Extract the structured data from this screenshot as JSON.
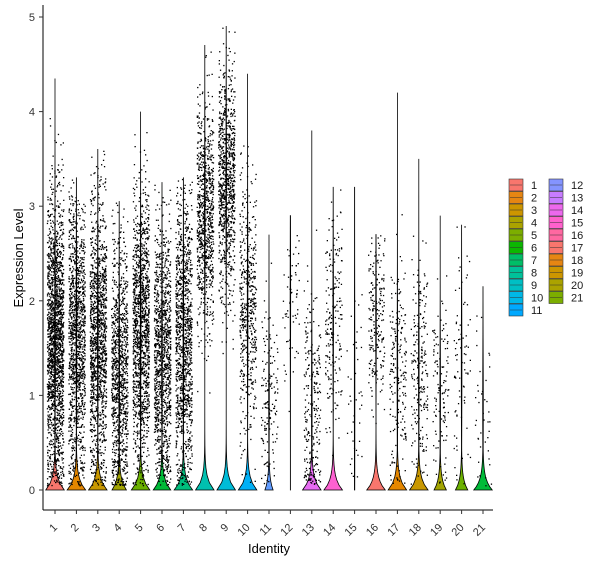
{
  "chart_data": {
    "type": "violin",
    "xlabel": "Identity",
    "ylabel": "Expression Level",
    "ylim": [
      -0.2,
      5.1
    ],
    "yticks": [
      0,
      1,
      2,
      3,
      4,
      5
    ],
    "grid": false,
    "legend_position": "right",
    "categories": [
      "1",
      "2",
      "3",
      "4",
      "5",
      "6",
      "7",
      "8",
      "9",
      "10",
      "11",
      "12",
      "13",
      "14",
      "15",
      "16",
      "17",
      "18",
      "19",
      "20",
      "21"
    ],
    "colors": [
      "#F8766D",
      "#E58700",
      "#C99800",
      "#A3A500",
      "#6BB100",
      "#00BA38",
      "#00BF7D",
      "#00C0AF",
      "#00BCD8",
      "#00B0F6",
      "#619CFF",
      "#B983FF",
      "#E76BF3",
      "#FD61D1",
      "#FF67A4",
      "#F8766D",
      "#E58700",
      "#C99800",
      "#A3A500",
      "#6BB100",
      "#00BA38"
    ],
    "legend": {
      "labels": [
        "1",
        "2",
        "3",
        "4",
        "5",
        "6",
        "7",
        "8",
        "9",
        "10",
        "11",
        "12",
        "13",
        "14",
        "15",
        "16",
        "17",
        "18",
        "19",
        "20",
        "21"
      ],
      "colors": [
        "#F8766D",
        "#E68613",
        "#CD9600",
        "#ABA300",
        "#7CAE00",
        "#0CB702",
        "#00BE67",
        "#00C19A",
        "#00BFC4",
        "#00B8E7",
        "#00A9FF",
        "#8494FF",
        "#C77CFF",
        "#ED68ED",
        "#FF61CC",
        "#FF68A1",
        "#F8766D",
        "#E68613",
        "#CD9600",
        "#ABA300",
        "#7CAE00"
      ]
    },
    "series": [
      {
        "name": "1",
        "max": 4.35,
        "zero_density": 0.9,
        "spread_center": 1.6,
        "spread_sd": 0.75,
        "n_points": 1800
      },
      {
        "name": "2",
        "max": 3.3,
        "zero_density": 0.9,
        "spread_center": 1.6,
        "spread_sd": 0.75,
        "n_points": 1200
      },
      {
        "name": "3",
        "max": 3.6,
        "zero_density": 0.9,
        "spread_center": 1.6,
        "spread_sd": 0.75,
        "n_points": 1300
      },
      {
        "name": "4",
        "max": 3.05,
        "zero_density": 0.7,
        "spread_center": 1.2,
        "spread_sd": 0.7,
        "n_points": 1000
      },
      {
        "name": "5",
        "max": 4.0,
        "zero_density": 0.9,
        "spread_center": 1.7,
        "spread_sd": 0.75,
        "n_points": 1300
      },
      {
        "name": "6",
        "max": 3.25,
        "zero_density": 0.85,
        "spread_center": 1.4,
        "spread_sd": 0.7,
        "n_points": 1100
      },
      {
        "name": "7",
        "max": 3.3,
        "zero_density": 0.9,
        "spread_center": 1.6,
        "spread_sd": 0.75,
        "n_points": 1100
      },
      {
        "name": "8",
        "max": 4.7,
        "zero_density": 0.9,
        "spread_center": 2.9,
        "spread_sd": 0.6,
        "n_points": 800
      },
      {
        "name": "9",
        "max": 4.9,
        "zero_density": 0.9,
        "spread_center": 3.3,
        "spread_sd": 0.6,
        "n_points": 900
      },
      {
        "name": "10",
        "max": 4.4,
        "zero_density": 0.9,
        "spread_center": 1.9,
        "spread_sd": 0.7,
        "n_points": 500
      },
      {
        "name": "11",
        "max": 2.7,
        "zero_density": 0.4,
        "spread_center": 1.0,
        "spread_sd": 0.5,
        "n_points": 150
      },
      {
        "name": "12",
        "max": 2.9,
        "zero_density": 0.0,
        "spread_center": 2.0,
        "spread_sd": 0.4,
        "n_points": 60
      },
      {
        "name": "13",
        "max": 3.8,
        "zero_density": 0.9,
        "spread_center": 0.9,
        "spread_sd": 0.6,
        "n_points": 250
      },
      {
        "name": "14",
        "max": 3.2,
        "zero_density": 0.9,
        "spread_center": 1.8,
        "spread_sd": 0.6,
        "n_points": 200
      },
      {
        "name": "15",
        "max": 3.2,
        "zero_density": 0.0,
        "spread_center": 1.0,
        "spread_sd": 0.6,
        "n_points": 40
      },
      {
        "name": "16",
        "max": 2.7,
        "zero_density": 0.9,
        "spread_center": 1.8,
        "spread_sd": 0.5,
        "n_points": 200
      },
      {
        "name": "17",
        "max": 4.2,
        "zero_density": 0.9,
        "spread_center": 1.2,
        "spread_sd": 0.6,
        "n_points": 200
      },
      {
        "name": "18",
        "max": 3.5,
        "zero_density": 0.9,
        "spread_center": 1.3,
        "spread_sd": 0.6,
        "n_points": 220
      },
      {
        "name": "19",
        "max": 2.9,
        "zero_density": 0.6,
        "spread_center": 1.0,
        "spread_sd": 0.5,
        "n_points": 120
      },
      {
        "name": "20",
        "max": 2.8,
        "zero_density": 0.6,
        "spread_center": 1.3,
        "spread_sd": 0.6,
        "n_points": 80
      },
      {
        "name": "21",
        "max": 2.15,
        "zero_density": 0.9,
        "spread_center": 0.9,
        "spread_sd": 0.5,
        "n_points": 40
      }
    ]
  }
}
